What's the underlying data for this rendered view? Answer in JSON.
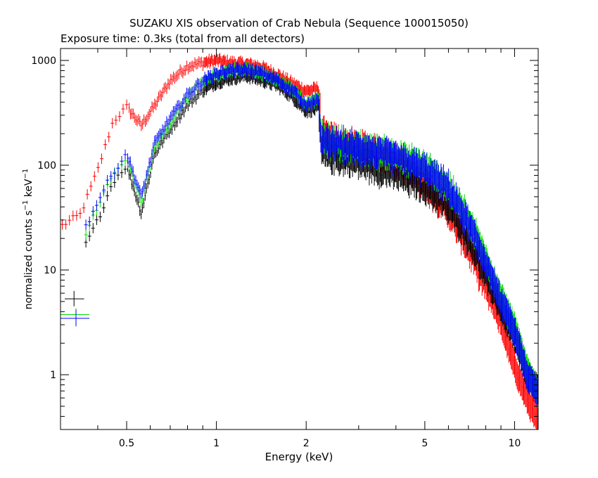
{
  "chart_data": {
    "type": "scatter",
    "title": "SUZAKU XIS observation of Crab Nebula (Sequence 100015050)",
    "subtitle": "Exposure time: 0.3ks (total from all detectors)",
    "xlabel": "Energy (keV)",
    "ylabel": "normalized counts s-1 keV-1",
    "ylabel_main": "normalized counts s",
    "ylabel_sup1": "−1",
    "ylabel_mid": " keV",
    "ylabel_sup2": "−1",
    "xscale": "log",
    "yscale": "log",
    "xlim": [
      0.3,
      12.0
    ],
    "ylim": [
      0.3,
      1300
    ],
    "grid": false,
    "legend": "none",
    "xticks": [
      {
        "value": 0.5,
        "label": "0.5"
      },
      {
        "value": 1,
        "label": "1"
      },
      {
        "value": 2,
        "label": "2"
      },
      {
        "value": 5,
        "label": "5"
      },
      {
        "value": 10,
        "label": "10"
      }
    ],
    "yticks": [
      {
        "value": 1,
        "label": "1"
      },
      {
        "value": 10,
        "label": "10"
      },
      {
        "value": 100,
        "label": "100"
      },
      {
        "value": 1000,
        "label": "1000"
      }
    ],
    "series": [
      {
        "color": "#ff0000",
        "x": [
          0.3,
          0.35,
          0.4,
          0.45,
          0.5,
          0.56,
          0.62,
          0.7,
          0.8,
          0.9,
          1.0,
          1.1,
          1.25,
          1.4,
          1.6,
          1.8,
          2.0,
          2.2,
          2.25,
          2.5,
          3.0,
          3.5,
          4.0,
          5.0,
          6.0,
          7.0,
          8.0,
          9.0,
          10.0,
          11.0,
          12.0
        ],
        "y": [
          26,
          34,
          90,
          260,
          360,
          240,
          370,
          640,
          880,
          950,
          1000,
          950,
          920,
          870,
          730,
          600,
          510,
          540,
          200,
          170,
          148,
          128,
          108,
          68,
          36,
          16,
          7,
          3.2,
          1.2,
          0.6,
          0.35
        ]
      },
      {
        "color": "#000000",
        "x": [
          0.36,
          0.4,
          0.45,
          0.5,
          0.56,
          0.62,
          0.7,
          0.8,
          0.9,
          1.0,
          1.1,
          1.25,
          1.4,
          1.6,
          1.8,
          2.0,
          2.2,
          2.25,
          2.5,
          3.0,
          3.5,
          4.0,
          5.0,
          6.0,
          7.0,
          8.0,
          9.0,
          10.0,
          11.0,
          12.0
        ],
        "y": [
          16,
          30,
          70,
          100,
          35,
          130,
          220,
          380,
          520,
          620,
          670,
          720,
          660,
          580,
          450,
          330,
          350,
          130,
          120,
          108,
          92,
          82,
          62,
          40,
          20,
          9,
          4.3,
          2.4,
          1.0,
          0.7
        ]
      },
      {
        "color": "#00dd00",
        "x": [
          0.36,
          0.4,
          0.45,
          0.5,
          0.56,
          0.62,
          0.7,
          0.8,
          0.9,
          1.0,
          1.1,
          1.25,
          1.4,
          1.6,
          1.8,
          2.0,
          2.2,
          2.25,
          2.5,
          3.0,
          3.5,
          4.0,
          5.0,
          6.0,
          7.0,
          8.0,
          9.0,
          10.0,
          11.0,
          12.0
        ],
        "y": [
          20,
          42,
          80,
          115,
          45,
          150,
          260,
          450,
          620,
          730,
          800,
          830,
          770,
          660,
          540,
          390,
          420,
          180,
          165,
          148,
          135,
          122,
          95,
          62,
          30,
          13,
          5.5,
          2.8,
          1.1,
          0.7
        ]
      },
      {
        "color": "#0000ff",
        "x": [
          0.36,
          0.4,
          0.45,
          0.5,
          0.56,
          0.62,
          0.7,
          0.8,
          0.9,
          1.0,
          1.1,
          1.25,
          1.4,
          1.6,
          1.8,
          2.0,
          2.2,
          2.25,
          2.5,
          3.0,
          3.5,
          4.0,
          5.0,
          6.0,
          7.0,
          8.0,
          9.0,
          10.0,
          11.0,
          12.0
        ],
        "y": [
          24,
          45,
          85,
          130,
          50,
          160,
          280,
          470,
          640,
          740,
          800,
          810,
          760,
          650,
          520,
          380,
          410,
          170,
          160,
          145,
          130,
          118,
          90,
          60,
          28,
          12,
          5.0,
          2.6,
          1.0,
          0.65
        ]
      }
    ],
    "low_energy_points": [
      {
        "color": "#000000",
        "x": 0.333,
        "y": 5.3,
        "xlo": 0.31,
        "xhi": 0.36,
        "ylo": 4.5,
        "yhi": 6.3
      },
      {
        "color": "#00dd00",
        "x": 0.338,
        "y": 3.75,
        "xlo": 0.3,
        "xhi": 0.375,
        "ylo": 3.3,
        "yhi": 4.3
      },
      {
        "color": "#0000ff",
        "x": 0.338,
        "y": 3.45,
        "xlo": 0.3,
        "xhi": 0.375,
        "ylo": 2.9,
        "yhi": 4.2
      }
    ]
  }
}
